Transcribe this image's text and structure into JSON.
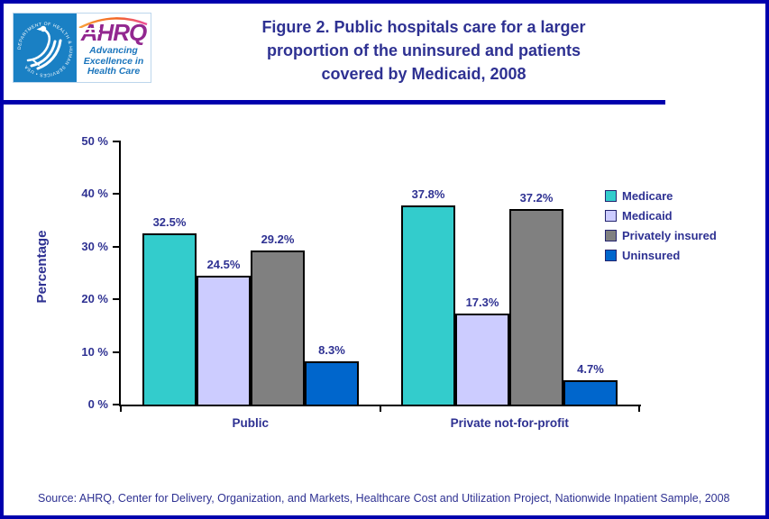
{
  "page": {
    "border_color": "#0000ad",
    "background": "#ffffff"
  },
  "header": {
    "logo": {
      "hhs_seal_ring_text": "DEPARTMENT OF HEALTH & HUMAN SERVICES • USA",
      "acronym": "AHRQ",
      "tagline_lines": [
        "Advancing",
        "Excellence in",
        "Health Care"
      ],
      "hhs_blue": "#1a80c4",
      "ahrq_purple": "#92278f",
      "tagline_blue": "#1b75bc"
    },
    "title_lines": [
      "Figure 2. Public hospitals care for a larger",
      "proportion of the uninsured and patients",
      "covered by Medicaid, 2008"
    ],
    "title_color": "#2e3192"
  },
  "chart_data": {
    "type": "bar",
    "title": "Figure 2. Public hospitals care for a larger proportion of the uninsured and patients covered by Medicaid, 2008",
    "categories": [
      "Public",
      "Private not-for-profit"
    ],
    "series": [
      {
        "name": "Medicare",
        "color": "#33cccc",
        "values": [
          32.5,
          37.8
        ]
      },
      {
        "name": "Medicaid",
        "color": "#ccccff",
        "values": [
          24.5,
          17.3
        ]
      },
      {
        "name": "Privately insured",
        "color": "#808080",
        "values": [
          29.2,
          37.2
        ]
      },
      {
        "name": "Uninsured",
        "color": "#0066cc",
        "values": [
          8.3,
          4.7
        ]
      }
    ],
    "data_labels": [
      [
        "32.5%",
        "24.5%",
        "29.2%",
        "8.3%"
      ],
      [
        "37.8%",
        "17.3%",
        "37.2%",
        "4.7%"
      ]
    ],
    "xlabel": "",
    "ylabel": "Percentage",
    "ylim": [
      0,
      50
    ],
    "yticks": [
      "0 %",
      "10 %",
      "20 %",
      "30 %",
      "40 %",
      "50 %"
    ],
    "grid": false,
    "legend_position": "right",
    "bar_border_color": "#000000",
    "text_color": "#2e3192"
  },
  "source": "Source: AHRQ, Center for Delivery, Organization, and Markets, Healthcare Cost and Utilization Project, Nationwide Inpatient Sample, 2008"
}
